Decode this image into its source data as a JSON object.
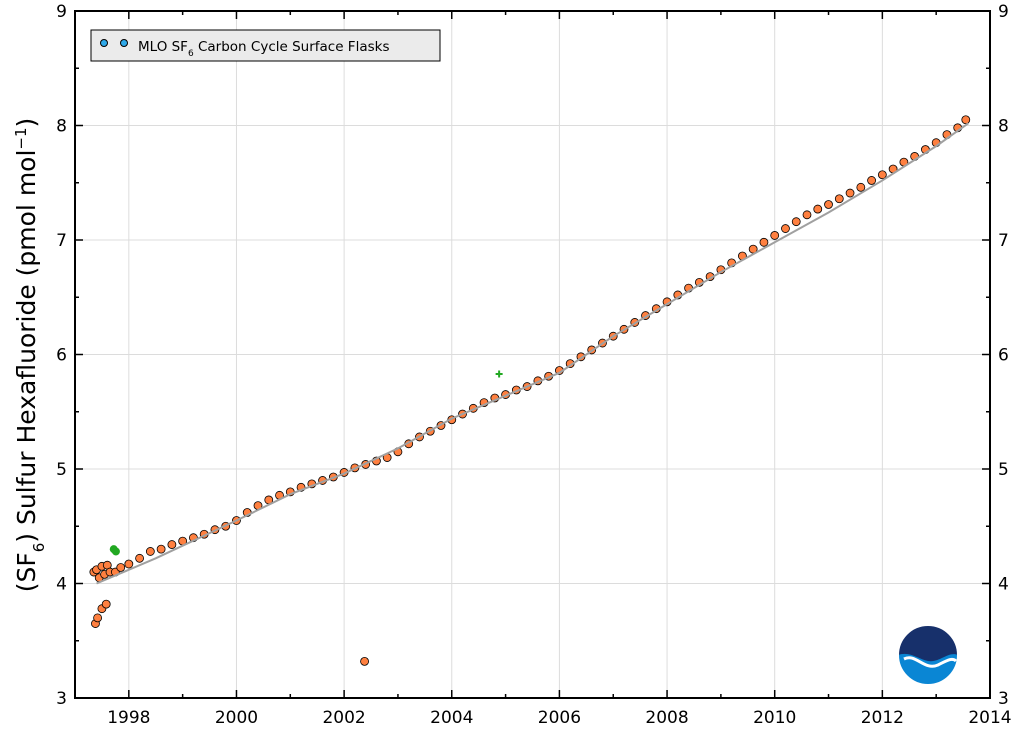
{
  "chart_data": {
    "type": "scatter",
    "ylabel_prefix": "(SF",
    "ylabel_sub": "6",
    "ylabel_mid": ") Sulfur Hexafluoride (pmol mol",
    "ylabel_sup": "−1",
    "ylabel_suffix": ")",
    "xlim": [
      1997.0,
      2014.0
    ],
    "ylim": [
      3.0,
      9.0
    ],
    "xticks": [
      1998,
      2000,
      2002,
      2004,
      2006,
      2008,
      2010,
      2012,
      2014
    ],
    "yticks": [
      3,
      4,
      5,
      6,
      7,
      8,
      9
    ],
    "grid": true,
    "legend": {
      "placement": "top-left",
      "entry_prefix": "MLO SF",
      "entry_sub": "6",
      "entry_suffix": " Carbon Cycle Surface Flasks"
    },
    "series": [
      {
        "type": "scatter",
        "color": "#ff8040",
        "edge_color": "#000000",
        "x": [
          1997.35,
          1997.4,
          1997.45,
          1997.5,
          1997.55,
          1997.6,
          1997.65,
          1997.75,
          1997.85,
          1998.0,
          1998.2,
          1998.4,
          1998.6,
          1998.8,
          1999.0,
          1999.2,
          1999.4,
          1999.6,
          1999.8,
          2000.0,
          2000.2,
          2000.4,
          2000.6,
          2000.8,
          2001.0,
          2001.2,
          2001.4,
          2001.6,
          2001.8,
          2002.0,
          2002.2,
          2002.4,
          2002.6,
          2002.8,
          2003.0,
          2003.2,
          2003.4,
          2003.6,
          2003.8,
          2004.0,
          2004.2,
          2004.4,
          2004.6,
          2004.8,
          2005.0,
          2005.2,
          2005.4,
          2005.6,
          2005.8,
          2006.0,
          2006.2,
          2006.4,
          2006.6,
          2006.8,
          2007.0,
          2007.2,
          2007.4,
          2007.6,
          2007.8,
          2008.0,
          2008.2,
          2008.4,
          2008.6,
          2008.8,
          2009.0,
          2009.2,
          2009.4,
          2009.6,
          2009.8,
          2010.0,
          2010.2,
          2010.4,
          2010.6,
          2010.8,
          2011.0,
          2011.2,
          2011.4,
          2011.6,
          2011.8,
          2012.0,
          2012.2,
          2012.4,
          2012.6,
          2012.8,
          2013.0,
          2013.2,
          2013.4,
          2013.55,
          2002.38,
          1997.38,
          1997.42,
          1997.5,
          1997.58
        ],
        "y": [
          4.1,
          4.12,
          4.05,
          4.15,
          4.08,
          4.16,
          4.1,
          4.1,
          4.14,
          4.17,
          4.22,
          4.28,
          4.3,
          4.34,
          4.37,
          4.4,
          4.43,
          4.47,
          4.5,
          4.55,
          4.62,
          4.68,
          4.73,
          4.77,
          4.8,
          4.84,
          4.87,
          4.9,
          4.93,
          4.97,
          5.01,
          5.04,
          5.07,
          5.1,
          5.15,
          5.22,
          5.28,
          5.33,
          5.38,
          5.43,
          5.48,
          5.53,
          5.58,
          5.62,
          5.65,
          5.69,
          5.72,
          5.77,
          5.81,
          5.86,
          5.92,
          5.98,
          6.04,
          6.1,
          6.16,
          6.22,
          6.28,
          6.34,
          6.4,
          6.46,
          6.52,
          6.58,
          6.63,
          6.68,
          6.74,
          6.8,
          6.86,
          6.92,
          6.98,
          7.04,
          7.1,
          7.16,
          7.22,
          7.27,
          7.31,
          7.36,
          7.41,
          7.46,
          7.52,
          7.57,
          7.62,
          7.68,
          7.73,
          7.79,
          7.85,
          7.92,
          7.98,
          8.05,
          3.32,
          3.65,
          3.7,
          3.78,
          3.82
        ]
      },
      {
        "type": "scatter",
        "color": "#22a822",
        "marker": "circle",
        "x": [
          1997.72,
          1997.76
        ],
        "y": [
          4.3,
          4.28
        ]
      },
      {
        "type": "scatter",
        "color": "#22a822",
        "marker": "plus",
        "x": [
          2004.88
        ],
        "y": [
          5.83
        ]
      },
      {
        "type": "line",
        "color": "#a0a0a0",
        "x": [
          1997.4,
          1997.8,
          1998.5,
          1999.0,
          1999.5,
          2000.0,
          2001.0,
          2002.0,
          2003.0,
          2004.0,
          2005.0,
          2006.0,
          2007.0,
          2008.0,
          2009.0,
          2010.0,
          2011.0,
          2012.0,
          2013.0,
          2013.6
        ],
        "y": [
          4.0,
          4.08,
          4.22,
          4.33,
          4.44,
          4.55,
          4.78,
          4.96,
          5.18,
          5.44,
          5.64,
          5.84,
          6.16,
          6.44,
          6.72,
          6.98,
          7.24,
          7.52,
          7.82,
          8.02
        ]
      }
    ]
  }
}
